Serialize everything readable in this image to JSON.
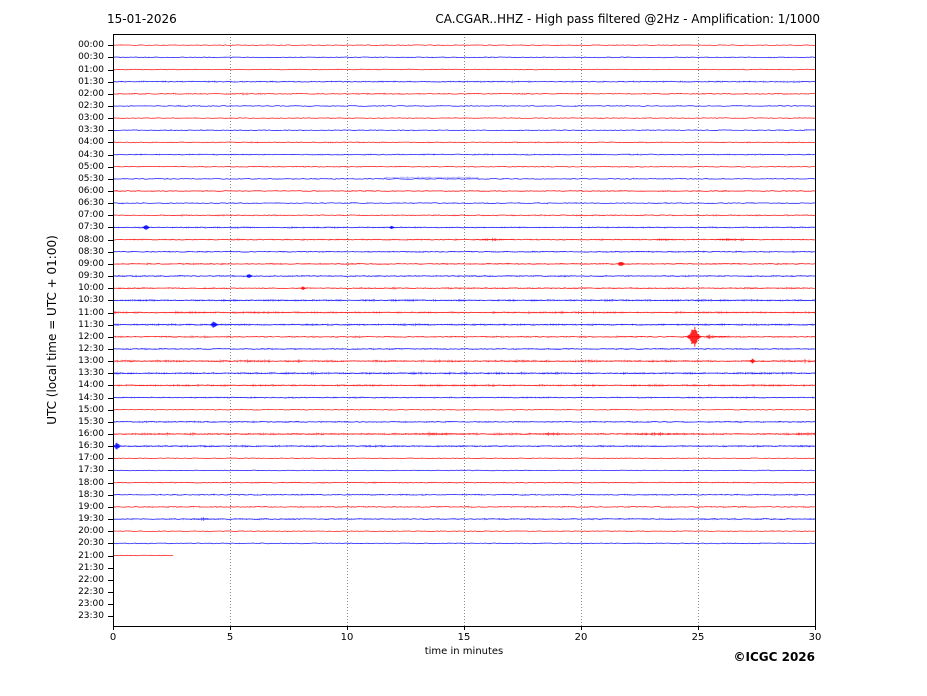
{
  "header": {
    "date": "15-01-2026",
    "title": "CA.CGAR..HHZ - High pass filtered @2Hz - Amplification: 1/1000"
  },
  "footer": {
    "copyright": "©ICGC 2026"
  },
  "axes": {
    "x_label": "time in minutes",
    "y_label": "UTC (local time = UTC + 01:00)",
    "x_ticks": [
      0,
      5,
      10,
      15,
      20,
      25,
      30
    ],
    "x_range": [
      0,
      30
    ],
    "grid_minutes": [
      5,
      10,
      15,
      20,
      25
    ],
    "grid_color": "#8a8a8a",
    "spine_color": "#000000"
  },
  "chart_data": {
    "type": "line",
    "subtype": "helicorder-seismogram",
    "title": "CA.CGAR..HHZ - High pass filtered @2Hz - Amplification: 1/1000",
    "xlabel": "time in minutes",
    "ylabel": "UTC (local time = UTC + 01:00)",
    "xlim": [
      0,
      30
    ],
    "minutes_per_row": 30,
    "palette": {
      "r": "#ff0000",
      "b": "#0000ff"
    },
    "rows": [
      {
        "t": "00:00",
        "c": "r",
        "amp": 0.5,
        "den": 1
      },
      {
        "t": "00:30",
        "c": "b",
        "amp": 0.7,
        "den": 1
      },
      {
        "t": "01:00",
        "c": "r",
        "amp": 0.6,
        "den": 1
      },
      {
        "t": "01:30",
        "c": "b",
        "amp": 1.3,
        "den": 1
      },
      {
        "t": "02:00",
        "c": "r",
        "amp": 1.1,
        "den": 1
      },
      {
        "t": "02:30",
        "c": "b",
        "amp": 0.7,
        "den": 1
      },
      {
        "t": "03:00",
        "c": "r",
        "amp": 0.6,
        "den": 1
      },
      {
        "t": "03:30",
        "c": "b",
        "amp": 0.8,
        "den": 1
      },
      {
        "t": "04:00",
        "c": "r",
        "amp": 1.0,
        "den": 1
      },
      {
        "t": "04:30",
        "c": "b",
        "amp": 1.0,
        "den": 1
      },
      {
        "t": "05:00",
        "c": "r",
        "amp": 0.7,
        "den": 1
      },
      {
        "t": "05:30",
        "c": "b",
        "amp": 0.8,
        "den": 1,
        "events": [
          {
            "type": "offset",
            "t": 13.6,
            "w": 4.0,
            "a": 1.3
          }
        ]
      },
      {
        "t": "06:00",
        "c": "r",
        "amp": 0.8,
        "den": 2
      },
      {
        "t": "06:30",
        "c": "b",
        "amp": 0.8,
        "den": 1
      },
      {
        "t": "07:00",
        "c": "r",
        "amp": 1.1,
        "den": 1
      },
      {
        "t": "07:30",
        "c": "b",
        "amp": 1.0,
        "den": 2,
        "events": [
          {
            "type": "spike",
            "t": 1.4,
            "w": 0.1,
            "a": 3
          },
          {
            "type": "spike",
            "t": 11.9,
            "w": 0.08,
            "a": 2
          }
        ]
      },
      {
        "t": "08:00",
        "c": "r",
        "amp": 1.0,
        "den": 2,
        "events": [
          {
            "type": "burst",
            "t": 16.2,
            "w": 0.5,
            "a": 1.8
          },
          {
            "type": "burst",
            "t": 23.5,
            "w": 0.3,
            "a": 1.5
          },
          {
            "type": "burst",
            "t": 26.5,
            "w": 0.5,
            "a": 1.8
          }
        ]
      },
      {
        "t": "08:30",
        "c": "b",
        "amp": 0.9,
        "den": 2
      },
      {
        "t": "09:00",
        "c": "r",
        "amp": 1.1,
        "den": 2,
        "events": [
          {
            "type": "spike",
            "t": 21.7,
            "w": 0.12,
            "a": 3
          }
        ]
      },
      {
        "t": "09:30",
        "c": "b",
        "amp": 1.1,
        "den": 2,
        "events": [
          {
            "type": "spike",
            "t": 5.8,
            "w": 0.1,
            "a": 2.5
          }
        ]
      },
      {
        "t": "10:00",
        "c": "r",
        "amp": 1.1,
        "den": 2,
        "events": [
          {
            "type": "spike",
            "t": 8.1,
            "w": 0.08,
            "a": 1.8
          }
        ]
      },
      {
        "t": "10:30",
        "c": "b",
        "amp": 1.3,
        "den": 3
      },
      {
        "t": "11:00",
        "c": "r",
        "amp": 1.3,
        "den": 3
      },
      {
        "t": "11:30",
        "c": "b",
        "amp": 1.3,
        "den": 3,
        "events": [
          {
            "type": "spike",
            "t": 4.3,
            "w": 0.12,
            "a": 3.5
          }
        ]
      },
      {
        "t": "12:00",
        "c": "r",
        "amp": 1.1,
        "den": 2,
        "events": [
          {
            "type": "spike",
            "t": 24.8,
            "w": 0.18,
            "a": 11,
            "coda": true
          }
        ]
      },
      {
        "t": "12:30",
        "c": "b",
        "amp": 1.0,
        "den": 2
      },
      {
        "t": "13:00",
        "c": "r",
        "amp": 1.5,
        "den": 3,
        "events": [
          {
            "type": "spike",
            "t": 27.3,
            "w": 0.1,
            "a": 2.5
          }
        ]
      },
      {
        "t": "13:30",
        "c": "b",
        "amp": 1.4,
        "den": 3
      },
      {
        "t": "14:00",
        "c": "r",
        "amp": 1.3,
        "den": 3
      },
      {
        "t": "14:30",
        "c": "b",
        "amp": 1.0,
        "den": 2
      },
      {
        "t": "15:00",
        "c": "r",
        "amp": 0.8,
        "den": 1
      },
      {
        "t": "15:30",
        "c": "b",
        "amp": 1.0,
        "den": 2
      },
      {
        "t": "16:00",
        "c": "r",
        "amp": 1.5,
        "den": 3,
        "events": [
          {
            "type": "burst",
            "t": 13.9,
            "w": 0.6,
            "a": 2
          },
          {
            "type": "burst",
            "t": 18.8,
            "w": 0.4,
            "a": 1.8
          },
          {
            "type": "burst",
            "t": 23.2,
            "w": 0.8,
            "a": 2
          },
          {
            "type": "burst",
            "t": 29.5,
            "w": 0.3,
            "a": 1.8
          }
        ]
      },
      {
        "t": "16:30",
        "c": "b",
        "amp": 1.2,
        "den": 3,
        "events": [
          {
            "type": "spike",
            "t": 0.15,
            "w": 0.1,
            "a": 4
          }
        ]
      },
      {
        "t": "17:00",
        "c": "r",
        "amp": 0.6,
        "den": 1
      },
      {
        "t": "17:30",
        "c": "b",
        "amp": 0.6,
        "den": 1
      },
      {
        "t": "18:00",
        "c": "r",
        "amp": 0.8,
        "den": 2
      },
      {
        "t": "18:30",
        "c": "b",
        "amp": 1.2,
        "den": 1
      },
      {
        "t": "19:00",
        "c": "r",
        "amp": 1.2,
        "den": 1
      },
      {
        "t": "19:30",
        "c": "b",
        "amp": 1.0,
        "den": 2,
        "events": [
          {
            "type": "burst",
            "t": 3.8,
            "w": 0.25,
            "a": 1.6
          }
        ]
      },
      {
        "t": "20:00",
        "c": "r",
        "amp": 0.6,
        "den": 1
      },
      {
        "t": "20:30",
        "c": "b",
        "amp": 0.7,
        "den": 1
      },
      {
        "t": "21:00",
        "c": "r",
        "amp": 0.5,
        "den": 1,
        "span": [
          0,
          2.55
        ]
      },
      {
        "t": "21:30",
        "c": "b",
        "amp": 0,
        "den": 0,
        "span": []
      },
      {
        "t": "22:00",
        "c": "r",
        "amp": 0,
        "den": 0,
        "span": []
      },
      {
        "t": "22:30",
        "c": "b",
        "amp": 0,
        "den": 0,
        "span": []
      },
      {
        "t": "23:00",
        "c": "r",
        "amp": 0,
        "den": 0,
        "span": []
      },
      {
        "t": "23:30",
        "c": "b",
        "amp": 0,
        "den": 0,
        "span": []
      }
    ]
  }
}
